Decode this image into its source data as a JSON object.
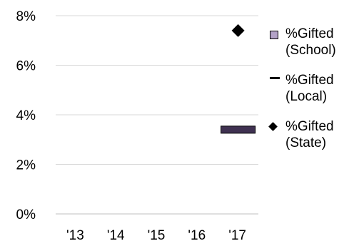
{
  "chart_data": {
    "type": "mixed",
    "categories": [
      "'13",
      "'14",
      "'15",
      "'16",
      "'17"
    ],
    "ylim": [
      0,
      8
    ],
    "yticks": [
      "0%",
      "2%",
      "4%",
      "6%",
      "8%"
    ],
    "grid": true,
    "legend_position": "right",
    "series": [
      {
        "name": "%Gifted\n(School)",
        "kind": "bar",
        "color": "#b3a2c7",
        "values": [
          null,
          null,
          null,
          null,
          null
        ]
      },
      {
        "name": "%Gifted\n(Local)",
        "kind": "bar-band",
        "color": "#3f3151",
        "values": [
          null,
          null,
          null,
          null,
          3.4
        ]
      },
      {
        "name": "%Gifted\n(State)",
        "kind": "marker",
        "color": "#000000",
        "values": [
          null,
          null,
          null,
          null,
          7.4
        ]
      }
    ]
  }
}
